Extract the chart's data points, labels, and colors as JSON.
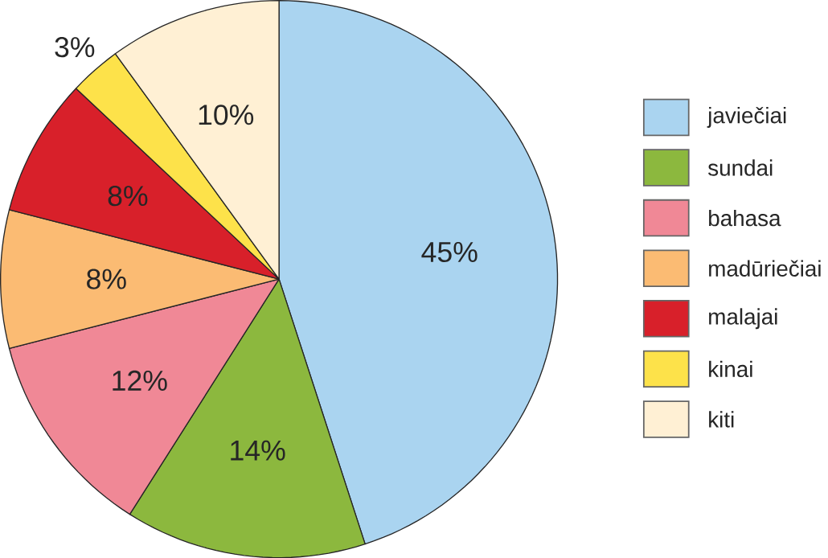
{
  "chart_data": {
    "type": "pie",
    "categories": [
      "javiečiai",
      "sundai",
      "bahasa",
      "madūriečiai",
      "malajai",
      "kinai",
      "kiti"
    ],
    "values": [
      45,
      14,
      12,
      8,
      8,
      3,
      10
    ],
    "value_labels": [
      "45%",
      "14%",
      "12%",
      "8%",
      "8%",
      "3%",
      "10%"
    ],
    "colors": [
      "#aad4f0",
      "#8cb83e",
      "#f08896",
      "#fbbb73",
      "#d8202a",
      "#fde24a",
      "#fff0d4"
    ],
    "legend": "right"
  }
}
